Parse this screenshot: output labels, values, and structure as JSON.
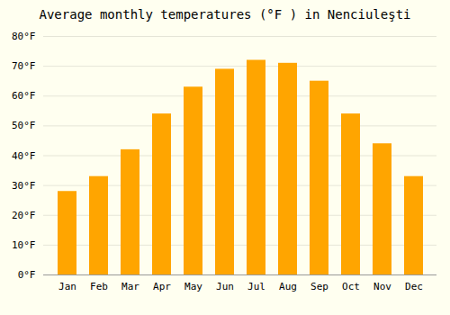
{
  "chart_data": {
    "type": "bar",
    "title": "Average monthly temperatures (°F ) in Nenciuleşti",
    "categories": [
      "Jan",
      "Feb",
      "Mar",
      "Apr",
      "May",
      "Jun",
      "Jul",
      "Aug",
      "Sep",
      "Oct",
      "Nov",
      "Dec"
    ],
    "values": [
      28,
      33,
      42,
      54,
      63,
      69,
      72,
      71,
      65,
      54,
      44,
      33
    ],
    "color": "#FFA500",
    "ylim": [
      0,
      80
    ],
    "yticks": [
      {
        "value": 0,
        "label": "0°F"
      },
      {
        "value": 10,
        "label": "10°F"
      },
      {
        "value": 20,
        "label": "20°F"
      },
      {
        "value": 30,
        "label": "30°F"
      },
      {
        "value": 40,
        "label": "40°F"
      },
      {
        "value": 50,
        "label": "50°F"
      },
      {
        "value": 60,
        "label": "60°F"
      },
      {
        "value": 70,
        "label": "70°F"
      },
      {
        "value": 80,
        "label": "80°F"
      }
    ],
    "grid": true
  }
}
